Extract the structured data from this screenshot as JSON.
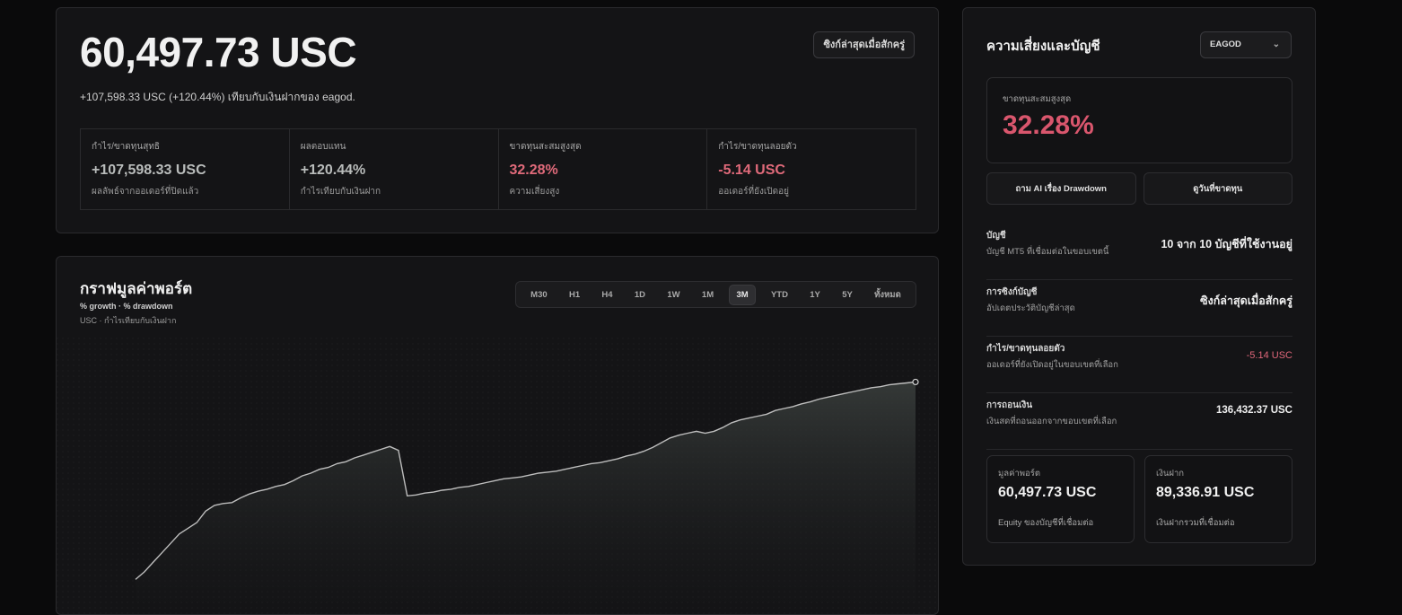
{
  "summary": {
    "equity_value": "60,497.73 USC",
    "change_line": "+107,598.33 USC (+120.44%) เทียบกับเงินฝากของ eagod.",
    "sync_label": "ซิงก์ล่าสุดเมื่อสักครู่",
    "stats": [
      {
        "label": "กำไร/ขาดทุนสุทธิ",
        "value": "+107,598.33 USC",
        "note": "ผลลัพธ์จากออเดอร์ที่ปิดแล้ว"
      },
      {
        "label": "ผลตอบแทน",
        "value": "+120.44%",
        "note": "กำไรเทียบกับเงินฝาก"
      },
      {
        "label": "ขาดทุนสะสมสูงสุด",
        "value": "32.28%",
        "note": "ความเสี่ยงสูง"
      },
      {
        "label": "กำไร/ขาดทุนลอยตัว",
        "value": "-5.14 USC",
        "note": "ออเดอร์ที่ยังเปิดอยู่"
      }
    ]
  },
  "chart_panel": {
    "title": "กราฟมูลค่าพอร์ต",
    "legend_line": "% growth · % drawdown",
    "unit_line": "USC · กำไรเทียบกับเงินฝาก",
    "timeframes": [
      "M30",
      "H1",
      "H4",
      "1D",
      "1W",
      "1M",
      "3M",
      "YTD",
      "1Y",
      "5Y",
      "ทั้งหมด"
    ],
    "active_timeframe": "3M"
  },
  "chart_data": {
    "type": "area",
    "title": "กราฟมูลค่าพอร์ต",
    "xlabel": "",
    "ylabel": "",
    "grid": false,
    "y": [
      0,
      4,
      9,
      14,
      19,
      24,
      27,
      30,
      36,
      39,
      40,
      40.5,
      43,
      45,
      46.5,
      47.5,
      49,
      50,
      52,
      54.5,
      56,
      58,
      59,
      61,
      62,
      64,
      65.5,
      67,
      68.5,
      70,
      68,
      44,
      44.5,
      45.5,
      46,
      47,
      47.5,
      48.5,
      49,
      50,
      51,
      52,
      53,
      53.5,
      54,
      55,
      56,
      56.5,
      57,
      58,
      59,
      60,
      61,
      61.5,
      62.5,
      63.5,
      65,
      66,
      67.5,
      69.5,
      72,
      74.5,
      76,
      77,
      78,
      77,
      78,
      80,
      82.5,
      84,
      85,
      86,
      87,
      89,
      90,
      91,
      92.5,
      93.5,
      95,
      96,
      97,
      98,
      99,
      100,
      101,
      101.5,
      102.5,
      103,
      103.5,
      104
    ],
    "ylim": [
      -5,
      125
    ],
    "colors": {
      "line": "#bdbdbd",
      "fill_top": "#3a3f3d",
      "background": "#141416"
    }
  },
  "risk_panel": {
    "title": "ความเสี่ยงและบัญชี",
    "account_select": "EAGOD",
    "max_drawdown_label": "ขาดทุนสะสมสูงสุด",
    "max_drawdown_value": "32.28%",
    "buttons": [
      "ถาม AI เรื่อง Drawdown",
      "ดูวันที่ขาดทุน"
    ],
    "rows": [
      {
        "label": "บัญชี",
        "desc": "บัญชี MT5 ที่เชื่อมต่อในขอบเขตนี้",
        "value": "10 จาก 10 บัญชีที่ใช้งานอยู่"
      },
      {
        "label": "การซิงก์บัญชี",
        "desc": "อัปเดตประวัติบัญชีล่าสุด",
        "value": "ซิงก์ล่าสุดเมื่อสักครู่"
      },
      {
        "label": "กำไร/ขาดทุนลอยตัว",
        "desc": "ออเดอร์ที่ยังเปิดอยู่ในขอบเขตที่เลือก",
        "value": "-5.14 USC"
      },
      {
        "label": "การถอนเงิน",
        "desc": "เงินสดที่ถอนออกจากขอบเขตที่เลือก",
        "value": "136,432.37 USC"
      }
    ],
    "mini_cards": [
      {
        "label": "มูลค่าพอร์ต",
        "value": "60,497.73 USC",
        "note": "Equity ของบัญชีที่เชื่อมต่อ"
      },
      {
        "label": "เงินฝาก",
        "value": "89,336.91 USC",
        "note": "เงินฝากรวมที่เชื่อมต่อ"
      }
    ]
  }
}
